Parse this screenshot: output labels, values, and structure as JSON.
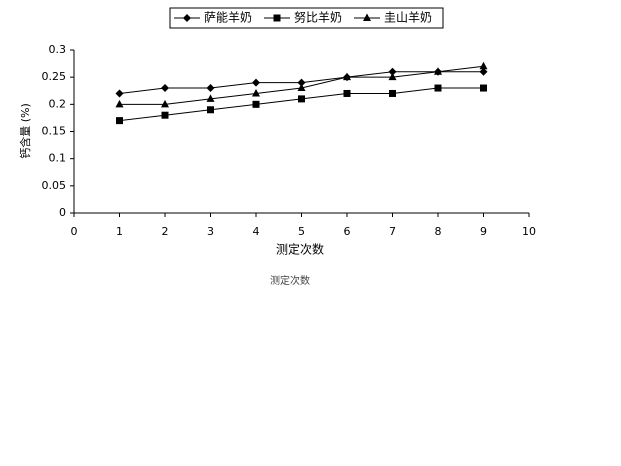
{
  "chart_data": {
    "type": "line",
    "x": [
      1,
      2,
      3,
      4,
      5,
      6,
      7,
      8,
      9
    ],
    "series": [
      {
        "name": "萨能羊奶",
        "color": "#000000",
        "marker": "diamond",
        "values": [
          0.22,
          0.23,
          0.23,
          0.24,
          0.24,
          0.25,
          0.26,
          0.26,
          0.26
        ]
      },
      {
        "name": "努比羊奶",
        "color": "#000000",
        "marker": "square",
        "values": [
          0.17,
          0.18,
          0.19,
          0.2,
          0.21,
          0.22,
          0.22,
          0.23,
          0.23
        ]
      },
      {
        "name": "圭山羊奶",
        "color": "#000000",
        "marker": "triangle",
        "values": [
          0.2,
          0.2,
          0.21,
          0.22,
          0.23,
          0.25,
          0.25,
          0.26,
          0.27
        ]
      }
    ],
    "xlabel": "测定次数",
    "ylabel": "钙含量 (%)",
    "annotation": "测定次数",
    "xlim": [
      0,
      10
    ],
    "xticks": [
      0,
      1,
      2,
      3,
      4,
      5,
      6,
      7,
      8,
      9,
      10
    ],
    "ylim": [
      0,
      0.3
    ],
    "yticks": [
      0,
      0.05,
      0.1,
      0.15,
      0.2,
      0.25,
      0.3
    ],
    "legend": "top",
    "grid": false
  }
}
